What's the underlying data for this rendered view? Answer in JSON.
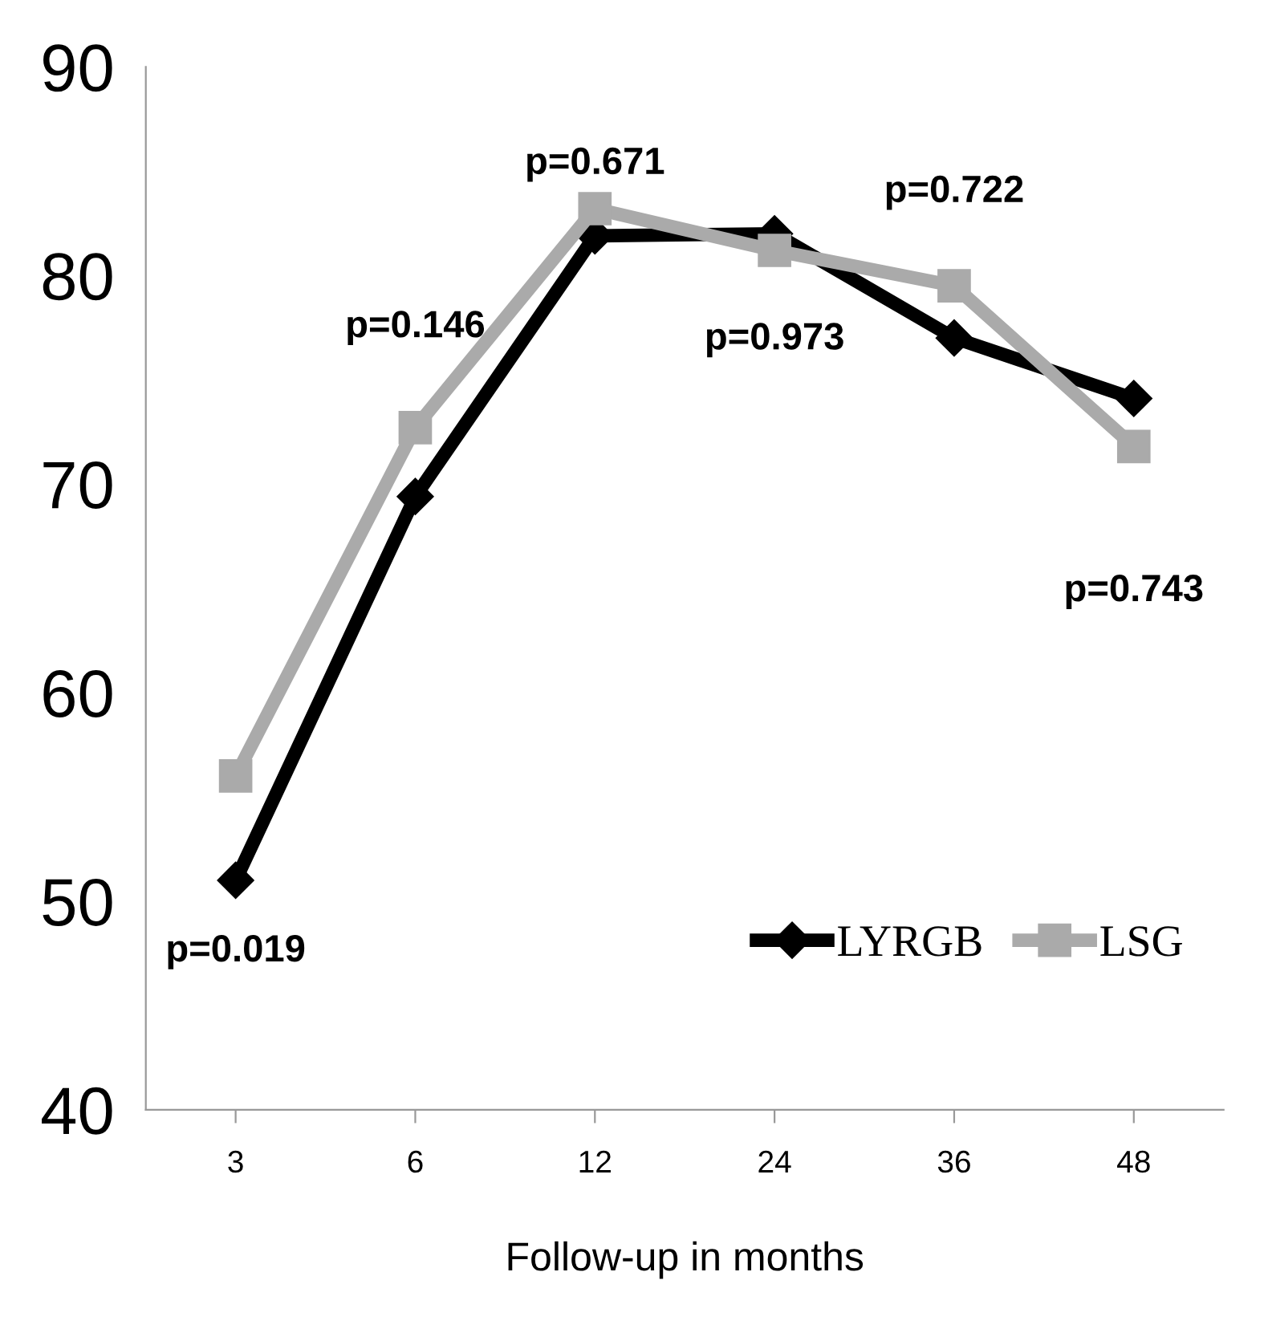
{
  "chart_data": {
    "type": "line",
    "xlabel": "Follow-up in months",
    "categories": [
      "3",
      "6",
      "12",
      "24",
      "36",
      "48"
    ],
    "series": [
      {
        "name": "LYRGB",
        "color": "#000000",
        "marker": "diamond",
        "values": [
          51,
          69.4,
          81.9,
          82,
          77,
          74.1
        ]
      },
      {
        "name": "LSG",
        "color": "#aaaaaa",
        "marker": "square",
        "values": [
          56,
          72.7,
          83.2,
          81.2,
          79.5,
          71.8
        ]
      }
    ],
    "ylim": [
      40,
      90
    ],
    "yticks": [
      40,
      50,
      60,
      70,
      80,
      90
    ],
    "grid": false,
    "legend": "bottom right",
    "line_style": "solid",
    "annotations": [
      "p=0.019",
      "p=0.146",
      "p=0.671",
      "p=0.973",
      "p=0.722",
      "p=0.743"
    ]
  }
}
